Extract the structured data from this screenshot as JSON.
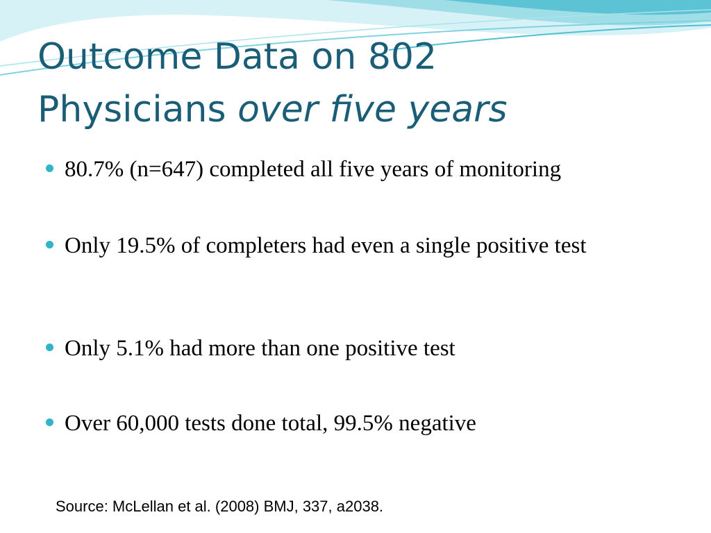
{
  "title": {
    "line1": "Outcome Data on 802",
    "line2_regular": "Physicians ",
    "line2_italic": "over five years"
  },
  "bullets": [
    {
      "text": "80.7% (n=647) completed all five years of monitoring"
    },
    {
      "text": "Only 19.5% of completers had even a single positive test"
    },
    {
      "text": "Only 5.1% had more than one positive test"
    },
    {
      "text": "Over 60,000 tests done total, 99.5% negative"
    }
  ],
  "source": "Source: McLellan et al. (2008) BMJ, 337, a2038.",
  "colors": {
    "title": "#1a5d76",
    "bullet_dot": "#2fb4c8",
    "wave_light": "#c8eef3",
    "wave_mid": "#7fd3e0",
    "wave_dark": "#38b5ca"
  }
}
